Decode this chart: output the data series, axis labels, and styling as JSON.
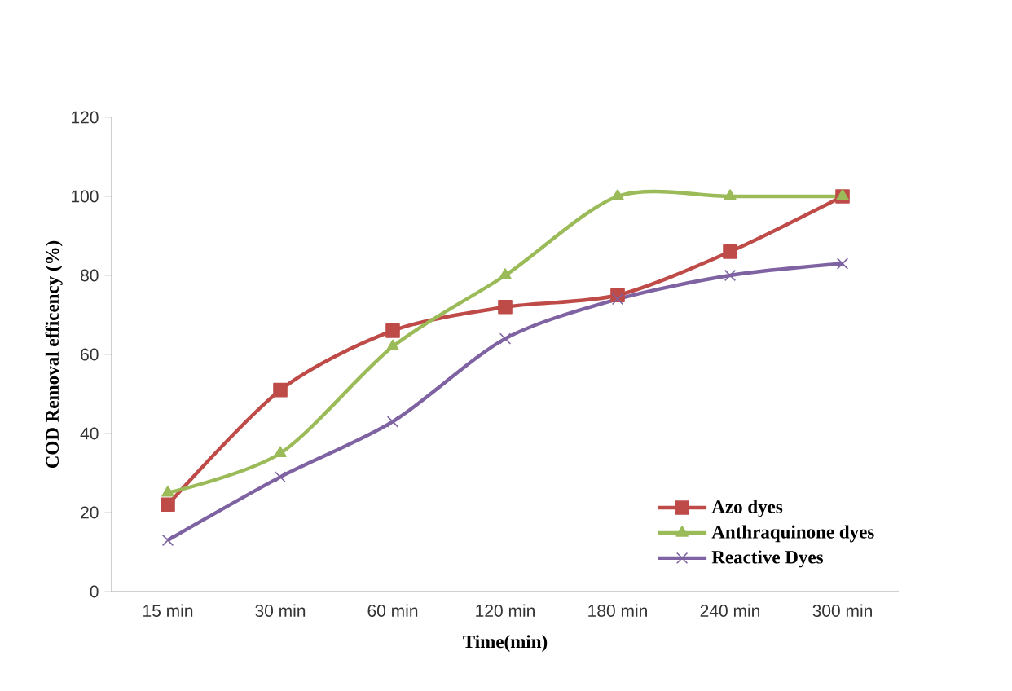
{
  "chart_data": {
    "type": "line",
    "xlabel": "Time(min)",
    "ylabel": "COD Removal efficency (%)",
    "categories": [
      "15 min",
      "30 min",
      "60 min",
      "120 min",
      "180 min",
      "240 min",
      "300 min"
    ],
    "series": [
      {
        "name": "Azo dyes",
        "color": "#be4b48",
        "marker": "square",
        "values": [
          22,
          51,
          66,
          72,
          75,
          86,
          100
        ]
      },
      {
        "name": "Anthraquinone dyes",
        "color": "#9bbb59",
        "marker": "triangle",
        "values": [
          25,
          35,
          62,
          80,
          100,
          100,
          100
        ]
      },
      {
        "name": "Reactive Dyes",
        "color": "#7e62a1",
        "marker": "cross",
        "values": [
          13,
          29,
          43,
          64,
          74,
          80,
          83
        ]
      }
    ],
    "ylim": [
      0,
      120
    ],
    "yticks": [
      0,
      20,
      40,
      60,
      80,
      100,
      120
    ],
    "grid": false,
    "legend": "bottom right",
    "line_style": "solid"
  }
}
